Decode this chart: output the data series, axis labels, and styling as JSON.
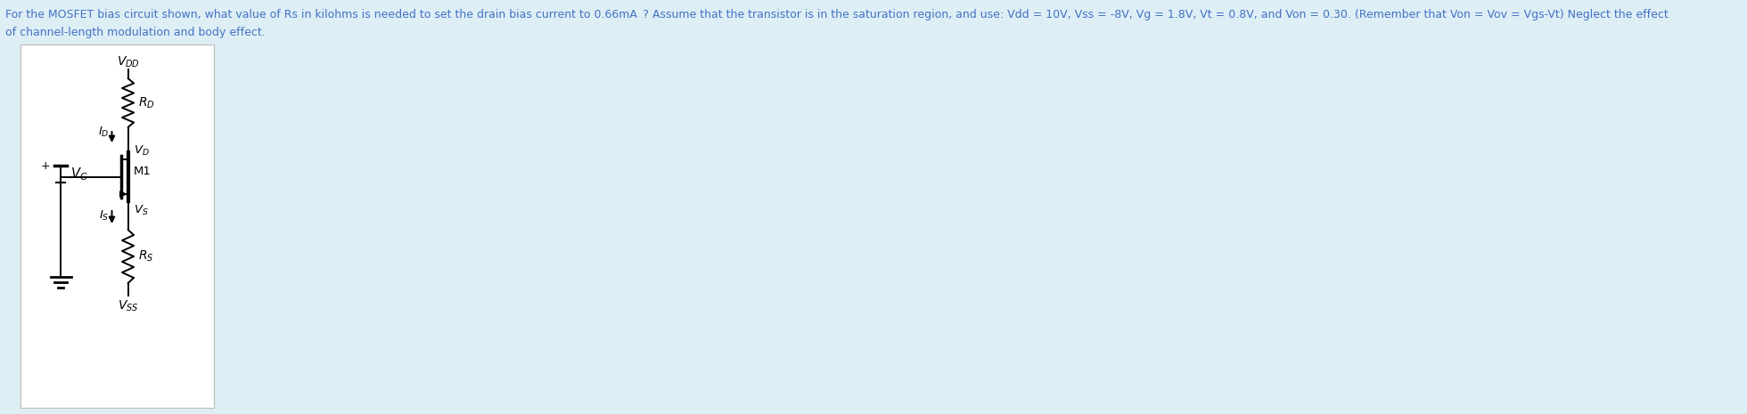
{
  "question_line1": "For the MOSFET bias circuit shown, what value of Rs in kilohms is needed to set the drain bias current to 0.66mA  ? Assume that the transistor is in the saturation region, and use: Vdd = 10V, Vss = -8V, Vg = 1.8V, Vt = 0.8V, and Von = 0.30. (Remember that Von = Vov = Vgs-Vt) Neglect the effect",
  "question_line2": "of channel-length modulation and body effect.",
  "bg_color": "#ddeef5",
  "circuit_bg": "#ffffff",
  "text_color": "#1a1a1a",
  "label_color": "#4472c4"
}
